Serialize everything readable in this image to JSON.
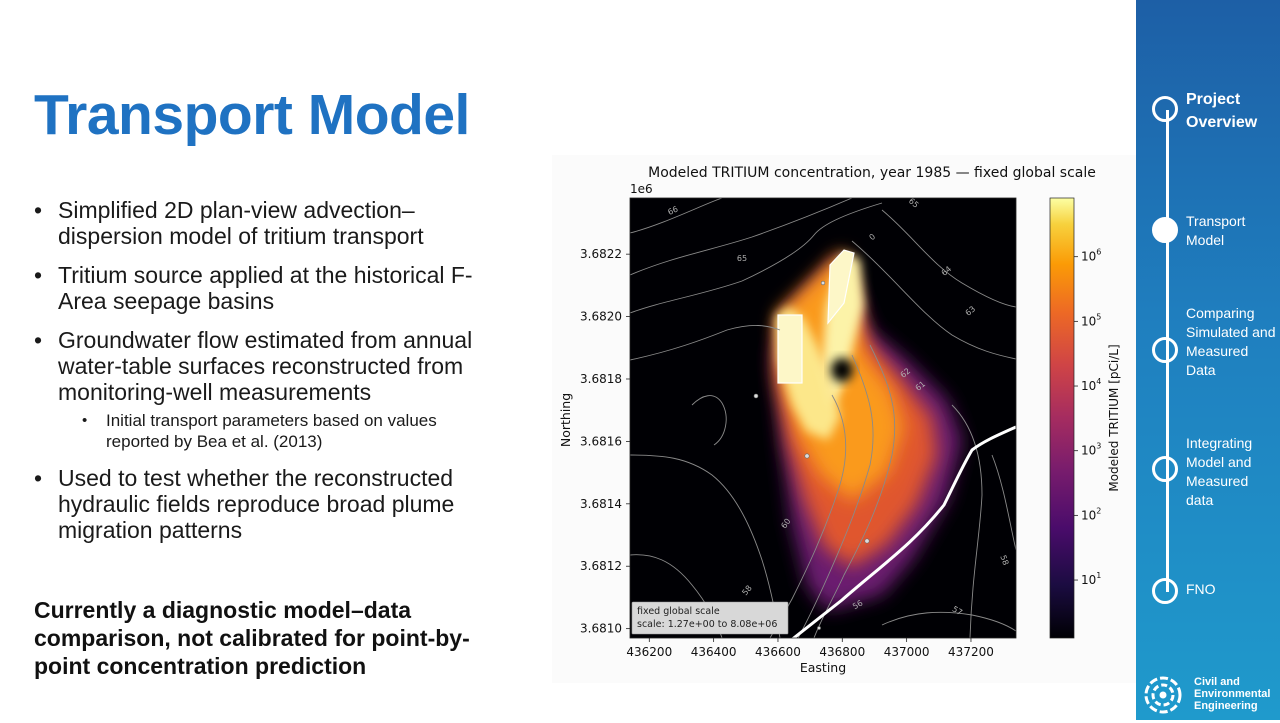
{
  "slide": {
    "title": "Transport Model",
    "bullets": [
      "Simplified 2D plan-view advection–dispersion model of tritium transport",
      "Tritium source applied at the historical F-Area seepage basins",
      "Groundwater flow estimated from annual water-table surfaces reconstructed from monitoring-well measurements",
      "Used to test whether the reconstructed hydraulic fields reproduce broad plume migration patterns"
    ],
    "sub_bullet": "Initial transport parameters based on values reported by Bea et al. (2013)",
    "conclusion": "Currently a diagnostic model–data comparison, not calibrated for point-by-point concentration prediction"
  },
  "nav": {
    "items": [
      {
        "label": "Project Overview",
        "state": "current"
      },
      {
        "label": "Transport Model",
        "state": "active"
      },
      {
        "label": "Comparing Simulated and Measured Data",
        "state": "upcoming"
      },
      {
        "label": "Integrating Model and Measured data",
        "state": "upcoming"
      },
      {
        "label": "FNO",
        "state": "upcoming"
      }
    ]
  },
  "logo": {
    "text": "Civil and Environmental Engineering"
  },
  "colors": {
    "title_blue": "#1f72c2",
    "sidebar_top": "#1d5fa6",
    "sidebar_bottom": "#1f9acc"
  },
  "chart_data": {
    "type": "heatmap",
    "title": "Modeled TRITIUM concentration, year 1985 — fixed global scale",
    "xlabel": "Easting",
    "ylabel": "Northing",
    "y_offset_label": "1e6",
    "xlim": [
      436140,
      437340
    ],
    "ylim": [
      3.68097,
      3.68238
    ],
    "x_ticks": [
      436200,
      436400,
      436600,
      436800,
      437000,
      437200
    ],
    "y_ticks": [
      3.681,
      3.6812,
      3.6814,
      3.6816,
      3.6818,
      3.682,
      3.6822
    ],
    "x_tick_labels": [
      "436200",
      "436400",
      "436600",
      "436800",
      "437000",
      "437200"
    ],
    "y_tick_labels": [
      "3.6810",
      "3.6812",
      "3.6814",
      "3.6816",
      "3.6818",
      "3.6820",
      "3.6822"
    ],
    "colorbar": {
      "label": "Modeled TRITIUM [pCi/L]",
      "scale": "log",
      "ticks": [
        {
          "base": "10",
          "exp": "1"
        },
        {
          "base": "10",
          "exp": "2"
        },
        {
          "base": "10",
          "exp": "3"
        },
        {
          "base": "10",
          "exp": "4"
        },
        {
          "base": "10",
          "exp": "5"
        },
        {
          "base": "10",
          "exp": "6"
        }
      ],
      "colormap": "inferno"
    },
    "contour_labels": [
      "66",
      "65",
      "65",
      "64",
      "63",
      "62",
      "61",
      "60",
      "58",
      "58",
      "57",
      "56",
      "0"
    ],
    "annotation_box": {
      "line1": "fixed global scale",
      "line2": "scale: 1.27e+00 to 8.08e+06"
    },
    "legend": "none"
  }
}
